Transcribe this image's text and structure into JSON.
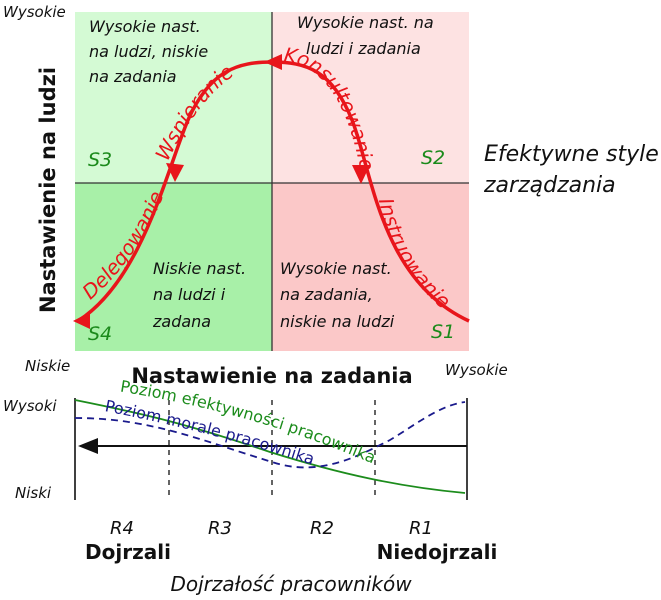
{
  "axes": {
    "y_top": "Wysokie",
    "y_bottom": "Niskie",
    "x_right": "Wysokie",
    "y_title": "Nastawienie na ludzi",
    "x_title": "Nastawienie na zadania"
  },
  "quadrants": {
    "s1": {
      "code": "S1",
      "line1": "Wysokie nast.",
      "line2": "na zadania,",
      "line3": "niskie na ludzi",
      "color": "#fbc8c8"
    },
    "s2": {
      "code": "S2",
      "line1": "Wysokie nast. na",
      "line2": "ludzi i zadania",
      "color": "#fde2e2"
    },
    "s3": {
      "code": "S3",
      "line1": "Wysokie nast.",
      "line2": "na ludzi, niskie",
      "line3": "na zadania",
      "color": "#d4fad4"
    },
    "s4": {
      "code": "S4",
      "line1": "Niskie nast.",
      "line2": "na ludzi i",
      "line3": "zadana",
      "color": "#a8f0a8"
    }
  },
  "curve": {
    "color": "#e8151b",
    "labels": {
      "instruowanie": "Instruowanie",
      "konsultowanie": "Konsultowanie",
      "wspieranie": "Wspieranie",
      "delegowanie": "Delegowanie"
    }
  },
  "side_title": {
    "line1": "Efektywne style",
    "line2": "zarządzania"
  },
  "lower": {
    "y_high": "Wysoki",
    "y_low": "Niski",
    "efficiency_label": "Poziom efektywności pracownika",
    "efficiency_color": "#1c8c1c",
    "morale_label": "Poziom morale pracownika",
    "morale_color": "#1a1a8c"
  },
  "maturity": {
    "levels": [
      "R4",
      "R3",
      "R2",
      "R1"
    ],
    "mature": "Dojrzali",
    "immature": "Niedojrzali",
    "title": "Dojrzałość pracowników"
  }
}
